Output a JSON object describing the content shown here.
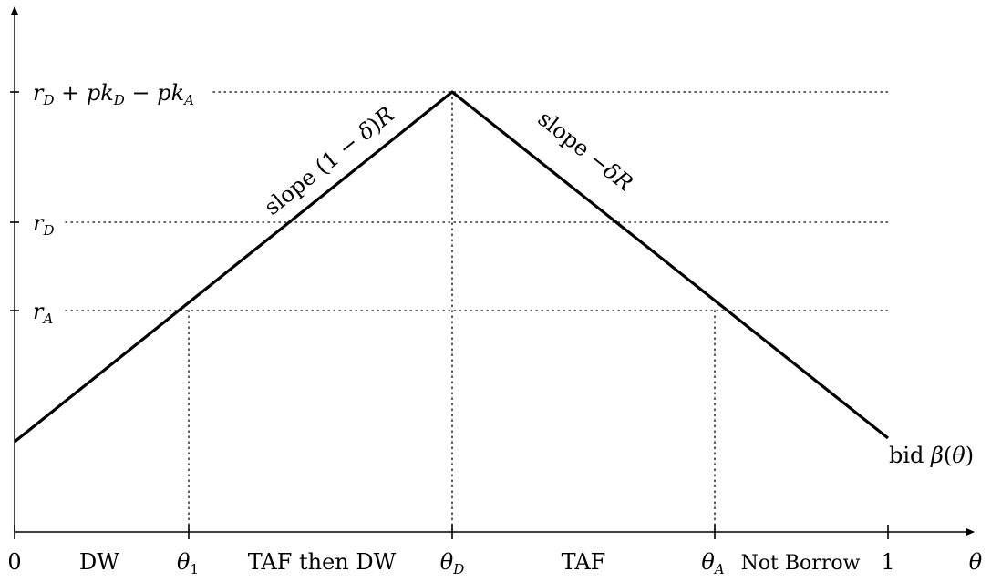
{
  "diagram": {
    "axis_x_label": "θ",
    "y_levels": [
      {
        "id": "top",
        "label_html": "<tspan class='it'>r</tspan><tspan class='it' font-size='15' dy='5'>D</tspan><tspan dy='-5'> + </tspan><tspan class='it'>pk</tspan><tspan class='it' font-size='15' dy='5'>D</tspan><tspan dy='-5'> − </tspan><tspan class='it'>pk</tspan><tspan class='it' font-size='15' dy='5'>A</tspan>"
      },
      {
        "id": "rD",
        "label_html": "<tspan class='it'>r</tspan><tspan class='it' font-size='15' dy='5'>D</tspan>"
      },
      {
        "id": "rA",
        "label_html": "<tspan class='it'>r</tspan><tspan class='it' font-size='15' dy='5'>A</tspan>"
      }
    ],
    "x_ticks": [
      {
        "id": "zero",
        "text": "0"
      },
      {
        "id": "theta1",
        "sym": "θ",
        "sub": "1"
      },
      {
        "id": "thetaD",
        "sym": "θ",
        "sub": "D"
      },
      {
        "id": "thetaA",
        "sym": "θ",
        "sub": "A"
      },
      {
        "id": "one",
        "text": "1"
      }
    ],
    "regions": [
      {
        "id": "dw",
        "text": "DW"
      },
      {
        "id": "taf-then-dw",
        "text": "TAF then DW"
      },
      {
        "id": "taf",
        "text": "TAF"
      },
      {
        "id": "not-borrow",
        "text": "Not Borrow"
      }
    ],
    "slope_left_label_html": "slope (1 − <tspan class='it'>δ</tspan>)<tspan class='it'>R</tspan>",
    "slope_right_label_html": "slope −<tspan class='it'>δR</tspan>",
    "curve_label_html": "bid <tspan class='it'>β</tspan>(<tspan class='it'>θ</tspan>)"
  }
}
